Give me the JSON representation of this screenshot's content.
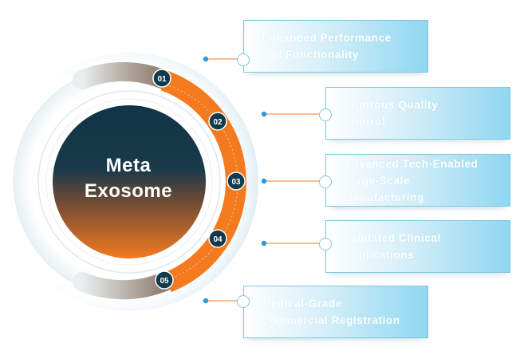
{
  "center": {
    "line1": "Meta",
    "line2": "Exosome"
  },
  "steps": [
    {
      "badge": "01",
      "lines": [
        "Enhanced Performance",
        "and Functionality"
      ]
    },
    {
      "badge": "02",
      "lines": [
        "Rigorous Quality",
        "Control"
      ]
    },
    {
      "badge": "03",
      "lines": [
        "Advanced Tech-Enabled",
        "Large-Scale",
        "Manufacturing"
      ]
    },
    {
      "badge": "04",
      "lines": [
        "Validated Clinical",
        "Applications"
      ]
    },
    {
      "badge": "05",
      "lines": [
        "Medical-Grade",
        "Commercial Registration"
      ]
    }
  ],
  "colors": {
    "orange": "#f47a20",
    "blue_dot": "#2c9ad6",
    "badge": "#123a4e",
    "dark": "#123a4e",
    "card_edge": "#7fc7e0"
  }
}
